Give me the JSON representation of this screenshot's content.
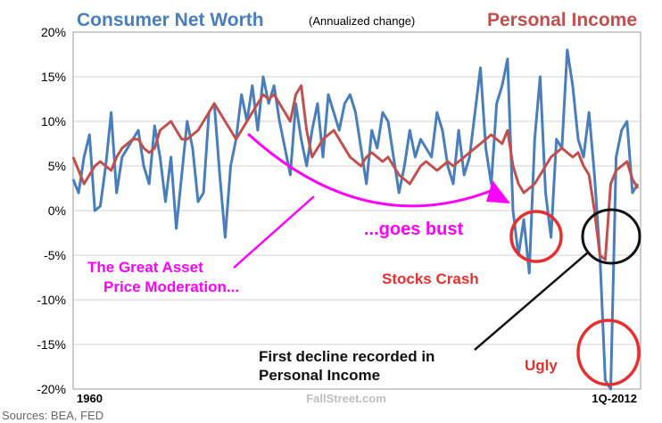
{
  "chart_data": {
    "type": "line",
    "title_left": "Consumer Net Worth",
    "title_center": "(Annualized change)",
    "title_right": "Personal Income",
    "x_start_label": "1960",
    "x_end_label": "1Q-2012",
    "watermark": "FallStreet.com",
    "source": "Sources: BEA, FED",
    "y_ticks": [
      "20%",
      "15%",
      "10%",
      "5%",
      "0%",
      "-5%",
      "-10%",
      "-15%",
      "-20%"
    ],
    "ylim": [
      -20,
      20
    ],
    "x_range": [
      1960,
      2012.25
    ],
    "grid": true,
    "series": [
      {
        "name": "Consumer Net Worth",
        "color": "#4A7EBB",
        "x": [
          1960.0,
          1960.5,
          1961.0,
          1961.5,
          1962.0,
          1962.5,
          1963.0,
          1963.5,
          1964.0,
          1964.5,
          1965.0,
          1965.5,
          1966.0,
          1966.5,
          1967.0,
          1967.5,
          1968.0,
          1968.5,
          1969.0,
          1969.5,
          1970.0,
          1970.5,
          1971.0,
          1971.5,
          1972.0,
          1972.5,
          1973.0,
          1973.5,
          1974.0,
          1974.5,
          1975.0,
          1975.5,
          1976.0,
          1976.5,
          1977.0,
          1977.5,
          1978.0,
          1978.5,
          1979.0,
          1979.5,
          1980.0,
          1980.5,
          1981.0,
          1981.5,
          1982.0,
          1982.5,
          1983.0,
          1983.5,
          1984.0,
          1984.5,
          1985.0,
          1985.5,
          1986.0,
          1986.5,
          1987.0,
          1987.5,
          1988.0,
          1988.5,
          1989.0,
          1989.5,
          1990.0,
          1990.5,
          1991.0,
          1991.5,
          1992.0,
          1992.5,
          1993.0,
          1993.5,
          1994.0,
          1994.5,
          1995.0,
          1995.5,
          1996.0,
          1996.5,
          1997.0,
          1997.5,
          1998.0,
          1998.5,
          1999.0,
          1999.5,
          2000.0,
          2000.5,
          2001.0,
          2001.5,
          2002.0,
          2002.5,
          2003.0,
          2003.5,
          2004.0,
          2004.5,
          2005.0,
          2005.5,
          2006.0,
          2006.5,
          2007.0,
          2007.5,
          2008.0,
          2008.5,
          2009.0,
          2009.5,
          2010.0,
          2010.5,
          2011.0,
          2011.5,
          2012.0
        ],
        "values": [
          3.5,
          2,
          6,
          8.5,
          0,
          0.5,
          5,
          11,
          2,
          6,
          7,
          8,
          9,
          5,
          3,
          9.5,
          6,
          1,
          6,
          -2,
          4,
          10,
          7,
          1,
          2,
          11,
          12,
          4,
          -3,
          5,
          8,
          13,
          10,
          14,
          9,
          15,
          12,
          14,
          10,
          7,
          4,
          12,
          8,
          5,
          9,
          12,
          6,
          13,
          11,
          9,
          12,
          13,
          11,
          7,
          3,
          9,
          7,
          11,
          10,
          6,
          2,
          5,
          9,
          6,
          8,
          7,
          6,
          11,
          9,
          5,
          3,
          9,
          4,
          6,
          11,
          16,
          7,
          3,
          12,
          14,
          17,
          0,
          -5,
          -1,
          -7,
          8,
          15,
          2,
          -3,
          8,
          7,
          18,
          14,
          8,
          6,
          11,
          4,
          -5,
          -19,
          -20,
          6,
          9,
          10,
          2,
          3
        ],
        "values_note": ""
      },
      {
        "name": "Personal Income",
        "color": "#C0504D",
        "x": [
          1960.0,
          1960.5,
          1961.0,
          1961.5,
          1962.0,
          1962.5,
          1963.0,
          1963.5,
          1964.0,
          1964.5,
          1965.0,
          1965.5,
          1966.0,
          1966.5,
          1967.0,
          1967.5,
          1968.0,
          1968.5,
          1969.0,
          1969.5,
          1970.0,
          1970.5,
          1971.0,
          1971.5,
          1972.0,
          1972.5,
          1973.0,
          1973.5,
          1974.0,
          1974.5,
          1975.0,
          1975.5,
          1976.0,
          1976.5,
          1977.0,
          1977.5,
          1978.0,
          1978.5,
          1979.0,
          1979.5,
          1980.0,
          1980.5,
          1981.0,
          1981.5,
          1982.0,
          1982.5,
          1983.0,
          1983.5,
          1984.0,
          1984.5,
          1985.0,
          1985.5,
          1986.0,
          1986.5,
          1987.0,
          1987.5,
          1988.0,
          1988.5,
          1989.0,
          1989.5,
          1990.0,
          1990.5,
          1991.0,
          1991.5,
          1992.0,
          1992.5,
          1993.0,
          1993.5,
          1994.0,
          1994.5,
          1995.0,
          1995.5,
          1996.0,
          1996.5,
          1997.0,
          1997.5,
          1998.0,
          1998.5,
          1999.0,
          1999.5,
          2000.0,
          2000.5,
          2001.0,
          2001.5,
          2002.0,
          2002.5,
          2003.0,
          2003.5,
          2004.0,
          2004.5,
          2005.0,
          2005.5,
          2006.0,
          2006.5,
          2007.0,
          2007.5,
          2008.0,
          2008.5,
          2009.0,
          2009.5,
          2010.0,
          2010.5,
          2011.0,
          2011.5,
          2012.0
        ],
        "values": [
          6,
          4.5,
          3,
          4,
          5,
          5.5,
          5,
          4.5,
          6,
          7,
          7.5,
          8,
          8,
          7,
          6.5,
          7,
          9,
          9.5,
          10,
          9,
          8,
          8,
          8.5,
          9,
          10,
          11,
          12,
          11,
          10,
          9,
          8,
          9,
          10,
          11,
          12,
          13,
          12.5,
          13,
          12,
          11,
          10,
          13,
          14,
          9,
          6,
          7,
          8,
          8.5,
          9,
          8,
          7,
          6,
          5.5,
          5,
          6,
          6.5,
          6,
          5.5,
          6,
          5,
          4,
          3.5,
          3,
          4,
          5,
          5.5,
          5,
          4.5,
          5,
          5.5,
          5,
          5.5,
          6,
          6.5,
          7,
          7.5,
          8,
          8.5,
          8,
          7.5,
          9,
          5,
          3,
          2,
          2.5,
          3,
          4,
          5,
          6,
          6.5,
          7,
          6.5,
          6,
          6.5,
          5,
          4,
          0,
          -5,
          -5.5,
          3,
          4.5,
          5,
          5.5,
          3.5,
          2.5
        ]
      }
    ]
  },
  "annotations": {
    "moderation": "The Great Asset\nPrice Moderation...",
    "bust": "...goes bust",
    "stocks_crash": "Stocks Crash",
    "first_decline": "First decline recorded in\nPersonal Income",
    "ugly": "Ugly"
  }
}
